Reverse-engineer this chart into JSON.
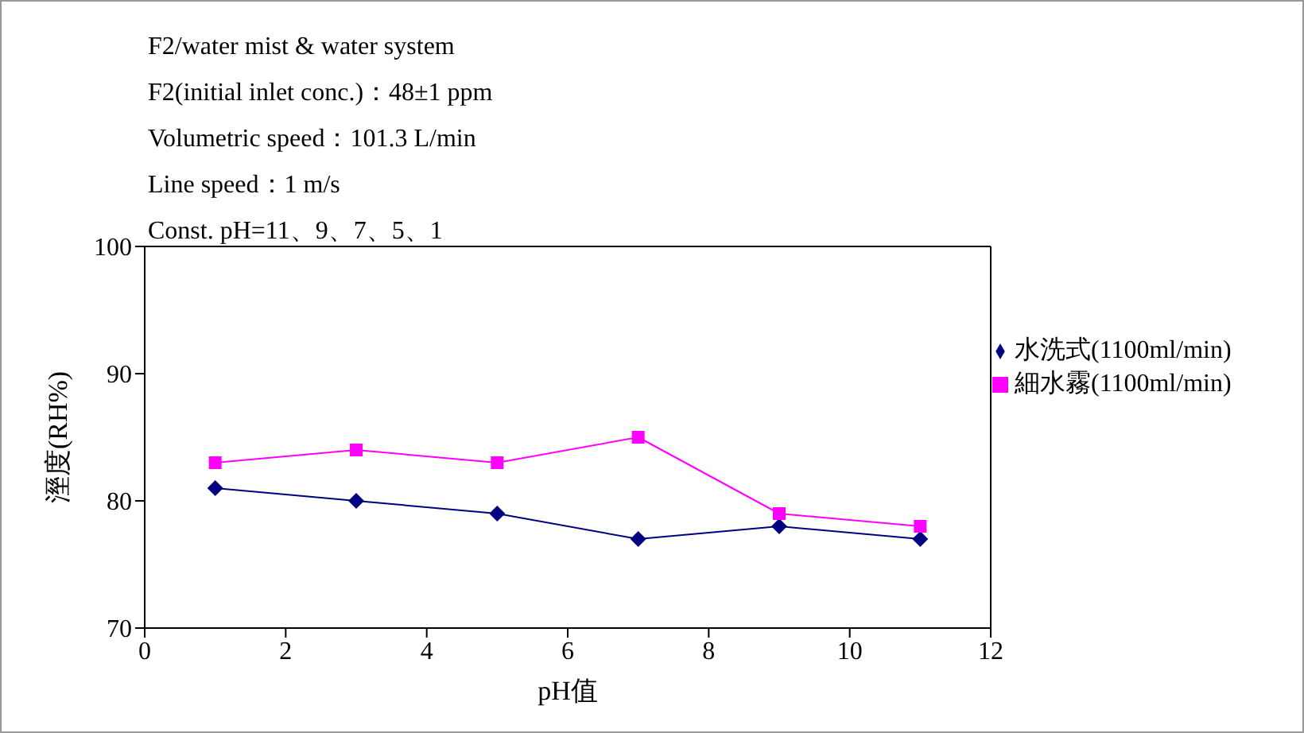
{
  "chart_data": {
    "type": "line",
    "annotations": [
      "F2/water mist & water system",
      "F2(initial inlet conc.)：48±1 ppm",
      "Volumetric speed：101.3 L/min",
      "Line speed：1 m/s",
      "Const. pH=11、9、7、5、1"
    ],
    "xlabel": "pH值",
    "ylabel": "溼度(RH%)",
    "x": [
      1,
      3,
      5,
      7,
      9,
      11
    ],
    "series": [
      {
        "name": "水洗式(1100ml/min)",
        "color": "#000080",
        "marker": "diamond",
        "values": [
          81,
          80,
          79,
          77,
          78,
          77
        ]
      },
      {
        "name": "細水霧(1100ml/min)",
        "color": "#ff00ff",
        "marker": "square",
        "values": [
          83,
          84,
          83,
          85,
          79,
          78
        ]
      }
    ],
    "xlim": [
      0,
      12
    ],
    "xticks": [
      0,
      2,
      4,
      6,
      8,
      10,
      12
    ],
    "ylim": [
      70,
      100
    ],
    "yticks": [
      70,
      80,
      90,
      100
    ],
    "grid": false,
    "legend": "right"
  }
}
